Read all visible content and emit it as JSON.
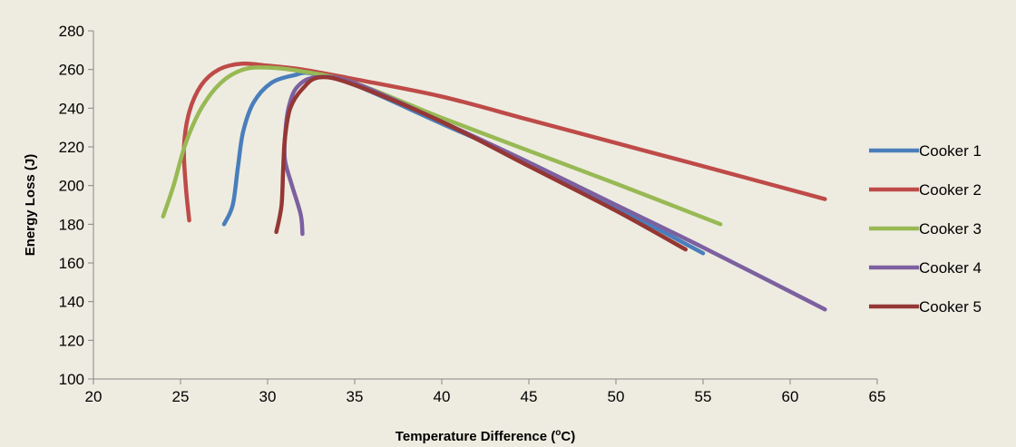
{
  "chart_data": {
    "type": "line",
    "title": "",
    "xlabel_main": "Temperature Difference (",
    "xlabel_sup": "o",
    "xlabel_tail": "C)",
    "ylabel": "Energy Loss (J)",
    "xlim": [
      20,
      65
    ],
    "ylim": [
      100,
      280
    ],
    "xticks": [
      20,
      25,
      30,
      35,
      40,
      45,
      50,
      55,
      60,
      65
    ],
    "yticks": [
      100,
      120,
      140,
      160,
      180,
      200,
      220,
      240,
      260,
      280
    ],
    "grid": false,
    "legend_position": "right",
    "series": [
      {
        "name": "Cooker 1",
        "color": "#4a7ebb",
        "points": [
          [
            27.5,
            180
          ],
          [
            28.0,
            190
          ],
          [
            28.3,
            210
          ],
          [
            28.6,
            228
          ],
          [
            29.2,
            243
          ],
          [
            30.2,
            253
          ],
          [
            31.5,
            257
          ],
          [
            32.5,
            258
          ],
          [
            35,
            252
          ],
          [
            40,
            232
          ],
          [
            45,
            212
          ],
          [
            50,
            189
          ],
          [
            55,
            165
          ]
        ]
      },
      {
        "name": "Cooker 2",
        "color": "#be4b48",
        "points": [
          [
            25.5,
            182
          ],
          [
            25.3,
            200
          ],
          [
            25.2,
            220
          ],
          [
            25.5,
            238
          ],
          [
            26.2,
            252
          ],
          [
            27.2,
            260
          ],
          [
            28.5,
            263
          ],
          [
            30,
            262
          ],
          [
            32,
            260
          ],
          [
            35,
            255
          ],
          [
            40,
            246
          ],
          [
            45,
            234
          ],
          [
            50,
            222
          ],
          [
            55,
            210
          ],
          [
            62,
            193
          ]
        ]
      },
      {
        "name": "Cooker 3",
        "color": "#98b954",
        "points": [
          [
            24,
            184
          ],
          [
            24.6,
            200
          ],
          [
            25.3,
            222
          ],
          [
            26.2,
            240
          ],
          [
            27.3,
            253
          ],
          [
            28.6,
            260
          ],
          [
            30,
            261
          ],
          [
            32,
            259
          ],
          [
            35,
            253
          ],
          [
            40,
            235
          ],
          [
            45,
            218
          ],
          [
            50,
            201
          ],
          [
            56,
            180
          ]
        ]
      },
      {
        "name": "Cooker 4",
        "color": "#7d60a0",
        "points": [
          [
            32,
            175
          ],
          [
            31.9,
            185
          ],
          [
            31.4,
            200
          ],
          [
            31.0,
            213
          ],
          [
            31.0,
            225
          ],
          [
            31.2,
            240
          ],
          [
            31.7,
            251
          ],
          [
            32.8,
            256
          ],
          [
            35,
            253
          ],
          [
            40,
            233
          ],
          [
            45,
            212
          ],
          [
            50,
            190
          ],
          [
            55,
            168
          ],
          [
            62,
            136
          ]
        ]
      },
      {
        "name": "Cooker 5",
        "color": "#953735",
        "points": [
          [
            30.5,
            176
          ],
          [
            30.8,
            190
          ],
          [
            30.9,
            210
          ],
          [
            31.0,
            225
          ],
          [
            31.3,
            240
          ],
          [
            32,
            250
          ],
          [
            33,
            256
          ],
          [
            35,
            252
          ],
          [
            40,
            233
          ],
          [
            45,
            210
          ],
          [
            50,
            187
          ],
          [
            54,
            167
          ]
        ]
      }
    ]
  }
}
